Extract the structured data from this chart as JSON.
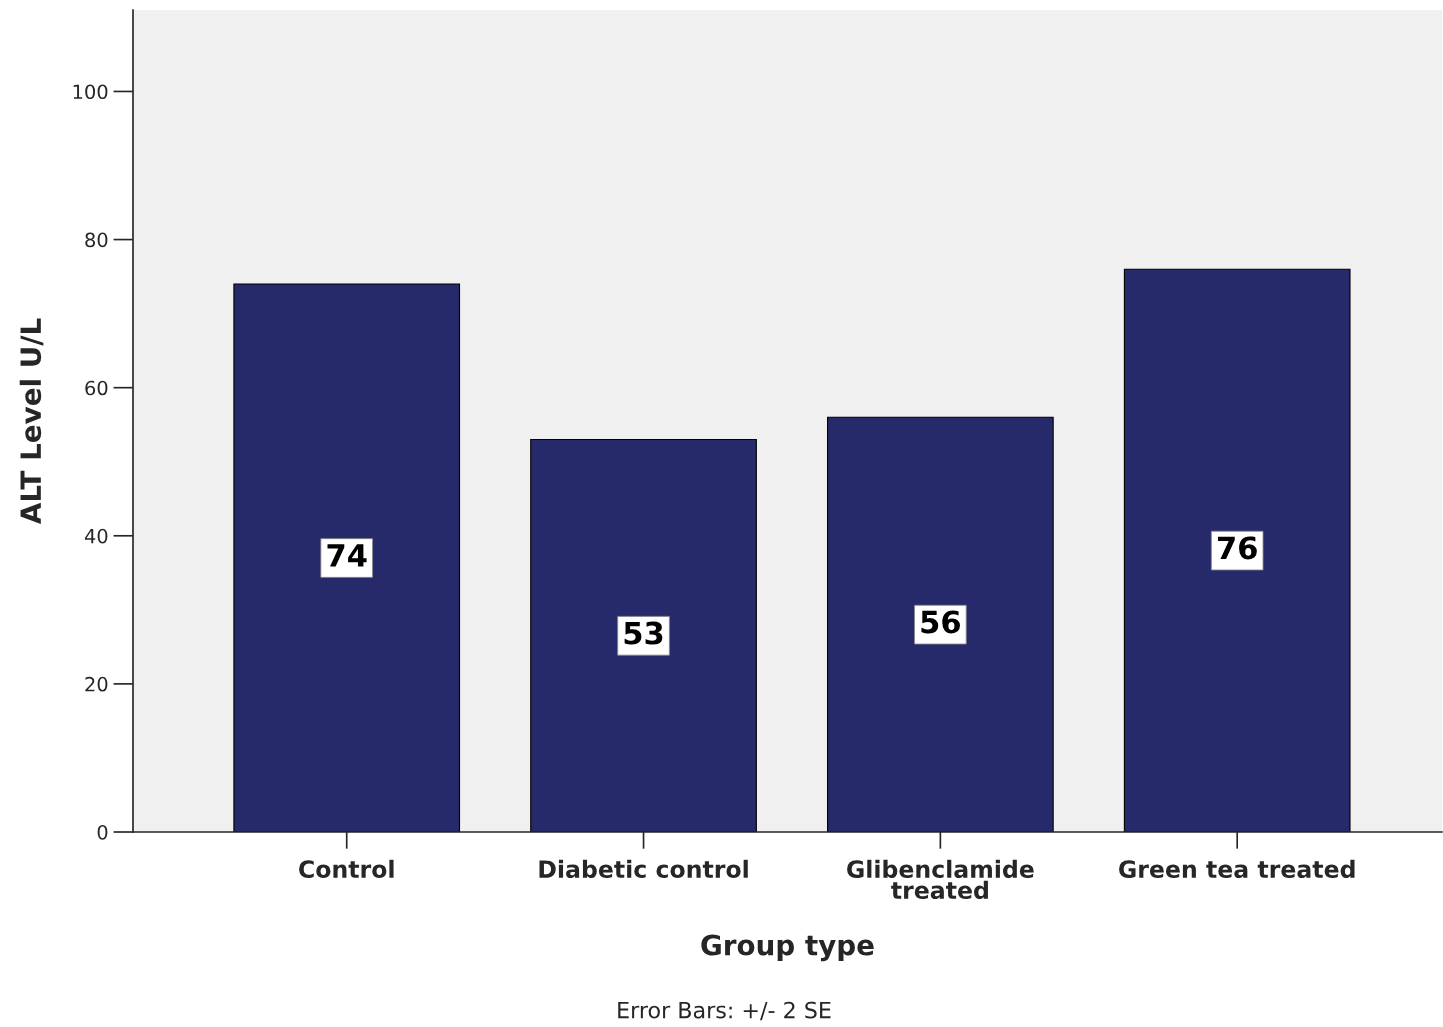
{
  "chart_data": {
    "type": "bar",
    "categories": [
      "Control",
      "Diabetic control",
      "Glibenclamide\ntreated",
      "Green tea treated"
    ],
    "values": [
      74,
      53,
      56,
      76
    ],
    "color": "#262a6b",
    "xlabel": "Group type",
    "ylabel": "ALT Level U/L",
    "ylim": [
      0,
      111
    ],
    "yticks": [
      0,
      20,
      40,
      60,
      80,
      100
    ],
    "data_labels": true,
    "grid": false,
    "legend": false,
    "annotations": [
      "Error Bars: +/- 2 SE"
    ]
  }
}
